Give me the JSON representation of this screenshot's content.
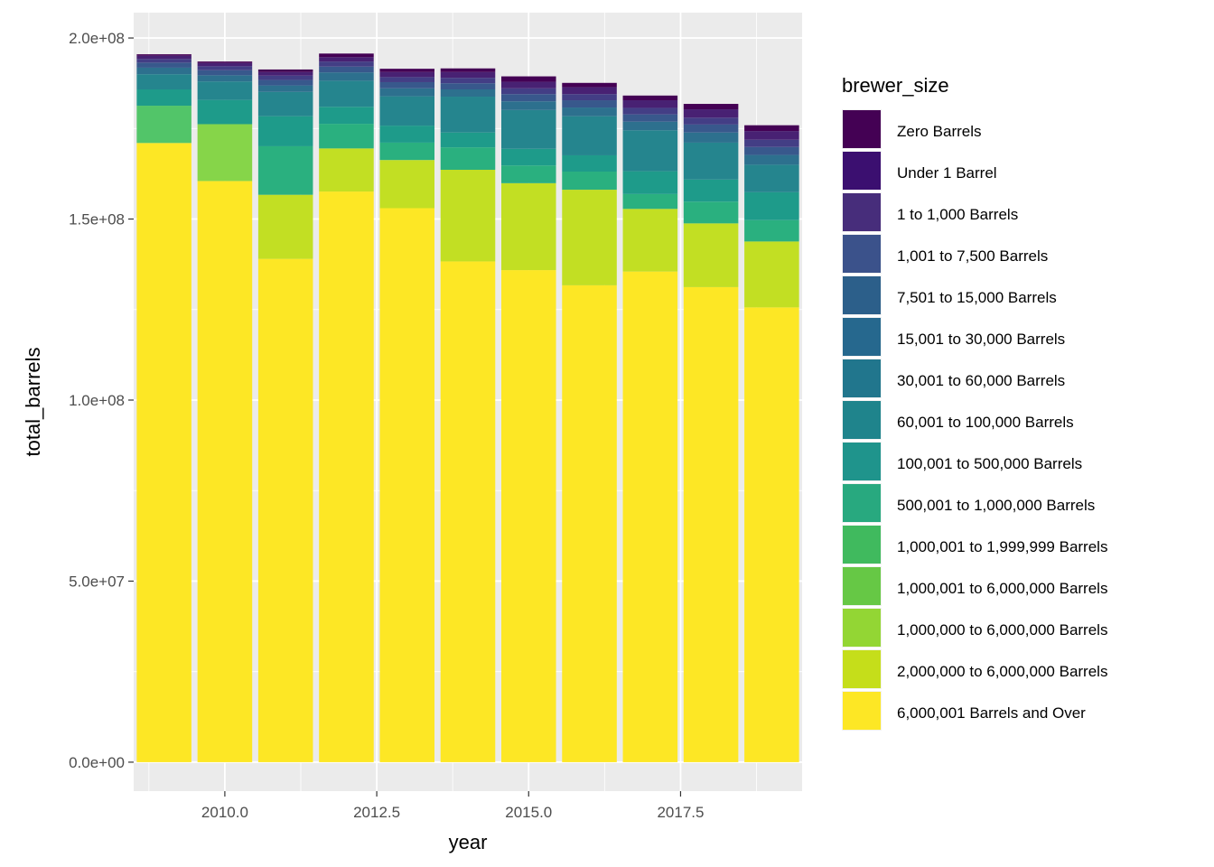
{
  "chart_data": {
    "type": "bar",
    "stacked": true,
    "xlabel": "year",
    "ylabel": "total_barrels",
    "xlim": [
      2008.5,
      2019.5
    ],
    "ylim": [
      -8000000,
      207000000
    ],
    "x_ticks": [
      "2010.0",
      "2012.5",
      "2015.0",
      "2017.5"
    ],
    "y_ticks": [
      "0.0e+00",
      "5.0e+07",
      "1.0e+08",
      "1.5e+08",
      "2.0e+08"
    ],
    "grid": true,
    "legend_position": "right",
    "legend_title": "brewer_size",
    "x": [
      2009,
      2010,
      2011,
      2012,
      2013,
      2014,
      2015,
      2016,
      2017,
      2018,
      2019
    ],
    "series": [
      {
        "name": "6,000,001 Barrels and Over",
        "color": "#FDE725",
        "values": [
          171000000,
          160500000,
          139000000,
          157600000,
          153000000,
          138300000,
          135900000,
          131700000,
          135500000,
          131200000,
          125600000
        ]
      },
      {
        "name": "2,000,000 to 6,000,000 Barrels",
        "color": "#C2DF23",
        "values": [
          0,
          0,
          17700000,
          11900000,
          13300000,
          25300000,
          24000000,
          26400000,
          17300000,
          17600000,
          18200000
        ]
      },
      {
        "name": "1,000,000 to 6,000,000 Barrels",
        "color": "#86D549",
        "values": [
          0,
          15700000,
          0,
          0,
          0,
          0,
          0,
          0,
          0,
          0,
          0
        ]
      },
      {
        "name": "1,000,001 to 6,000,000 Barrels",
        "color": "#52C569",
        "values": [
          10300000,
          0,
          0,
          0,
          0,
          0,
          0,
          0,
          0,
          0,
          0
        ]
      },
      {
        "name": "1,000,001 to 1,999,999 Barrels",
        "color": "#2AB07F",
        "values": [
          0,
          0,
          13400000,
          6800000,
          4800000,
          6200000,
          4900000,
          5000000,
          4100000,
          6000000,
          5900000
        ]
      },
      {
        "name": "500,001 to 1,000,000 Barrels",
        "color": "#1E9B8A",
        "values": [
          4500000,
          6700000,
          8300000,
          4700000,
          4700000,
          4100000,
          4600000,
          4500000,
          6300000,
          6100000,
          7700000
        ]
      },
      {
        "name": "100,001 to 500,000 Barrels",
        "color": "#25858E",
        "values": [
          4200000,
          5100000,
          6700000,
          7200000,
          8100000,
          9900000,
          10700000,
          10800000,
          11300000,
          10200000,
          7600000
        ]
      },
      {
        "name": "60,001 to 100,000 Barrels",
        "color": "#2D708E",
        "values": [
          1800000,
          1700000,
          1800000,
          2300000,
          2200000,
          2000000,
          2400000,
          2400000,
          2400000,
          2800000,
          2700000
        ]
      },
      {
        "name": "30,001 to 60,000 Barrels",
        "color": "#38588C",
        "values": [
          1400000,
          1400000,
          1500000,
          1600000,
          1700000,
          1700000,
          2000000,
          2000000,
          2000000,
          2200000,
          2200000
        ]
      },
      {
        "name": "15,001 to 30,000 Barrels",
        "color": "#433E85",
        "values": [
          1000000,
          1100000,
          1200000,
          1400000,
          1400000,
          1500000,
          1600000,
          1700000,
          1800000,
          1900000,
          2000000
        ]
      },
      {
        "name": "7,501 to 15,000 Barrels",
        "color": "#482173",
        "values": [
          900000,
          900000,
          1000000,
          1200000,
          1400000,
          1600000,
          1800000,
          1900000,
          2100000,
          2300000,
          2400000
        ]
      },
      {
        "name": "1,001 to 7,500 Barrels",
        "color": "#440154",
        "values": [
          400000,
          400000,
          700000,
          1000000,
          900000,
          1000000,
          1500000,
          1200000,
          1300000,
          1500000,
          1600000
        ]
      },
      {
        "name": "1 to 1,000 Barrels",
        "color": "#46337E",
        "values": [
          0,
          0,
          0,
          0,
          0,
          0,
          0,
          0,
          0,
          0,
          0
        ]
      },
      {
        "name": "Under 1 Barrel",
        "color": "#3B0F70",
        "values": [
          0,
          0,
          0,
          0,
          0,
          0,
          0,
          0,
          0,
          0,
          0
        ]
      },
      {
        "name": "Zero Barrels",
        "color": "#2D0945",
        "values": [
          0,
          0,
          0,
          0,
          0,
          0,
          0,
          0,
          0,
          0,
          0
        ]
      }
    ],
    "legend_order": [
      {
        "name": "Zero Barrels",
        "color": "#440154"
      },
      {
        "name": "Under 1 Barrel",
        "color": "#3B0F70"
      },
      {
        "name": "1 to 1,000 Barrels",
        "color": "#472D7B"
      },
      {
        "name": "1,001 to 7,500 Barrels",
        "color": "#3B528B"
      },
      {
        "name": "7,501 to 15,000 Barrels",
        "color": "#2C5F8A"
      },
      {
        "name": "15,001 to 30,000 Barrels",
        "color": "#26688E"
      },
      {
        "name": "30,001 to 60,000 Barrels",
        "color": "#21768D"
      },
      {
        "name": "60,001 to 100,000 Barrels",
        "color": "#1F848C"
      },
      {
        "name": "100,001 to 500,000 Barrels",
        "color": "#1F948C"
      },
      {
        "name": "500,001 to 1,000,000 Barrels",
        "color": "#28A97F"
      },
      {
        "name": "1,000,001 to 1,999,999 Barrels",
        "color": "#40BA5E"
      },
      {
        "name": "1,000,001 to 6,000,000 Barrels",
        "color": "#66C845"
      },
      {
        "name": "1,000,000 to 6,000,000 Barrels",
        "color": "#93D634"
      },
      {
        "name": "2,000,000 to 6,000,000 Barrels",
        "color": "#C5DE1A"
      },
      {
        "name": "6,000,001 Barrels and Over",
        "color": "#FDE725"
      }
    ]
  }
}
